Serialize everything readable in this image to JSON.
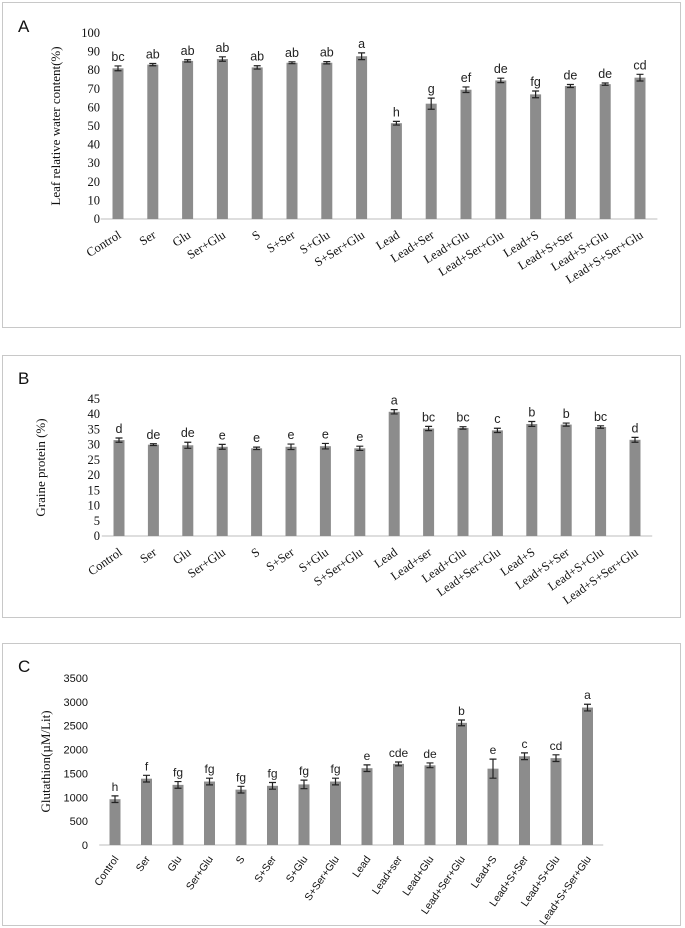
{
  "chart_data": [
    {
      "panel": "A",
      "type": "bar",
      "ylabel": "Leaf relative water content(%)",
      "ylim": [
        0,
        100
      ],
      "yticks": [
        0,
        10,
        20,
        30,
        40,
        50,
        60,
        70,
        80,
        90,
        100
      ],
      "categories": [
        "Control",
        "Ser",
        "Glu",
        "Ser+Glu",
        "S",
        "S+Ser",
        "S+Glu",
        "S+Ser+Glu",
        "Lead",
        "Lead+Ser",
        "Lead+Glu",
        "Lead+Ser+Glu",
        "Lead+S",
        "Lead+S+Ser",
        "Lead+S+Glu",
        "Lead+S+Ser+Glu"
      ],
      "values": [
        81,
        83,
        85,
        86,
        81.5,
        84,
        84,
        87.5,
        51.5,
        62,
        69.5,
        74.5,
        67,
        71.5,
        72.5,
        76
      ],
      "errors": [
        1.3,
        0.6,
        0.6,
        1.2,
        0.9,
        0.5,
        0.6,
        1.8,
        1.0,
        3.0,
        1.5,
        1.2,
        1.8,
        0.8,
        0.6,
        1.8
      ],
      "letters": [
        "bc",
        "ab",
        "ab",
        "ab",
        "ab",
        "ab",
        "ab",
        "a",
        "h",
        "g",
        "ef",
        "de",
        "fg",
        "de",
        "de",
        "cd"
      ]
    },
    {
      "panel": "B",
      "type": "bar",
      "ylabel": "Graine  protein (%)",
      "ylim": [
        0,
        45
      ],
      "yticks": [
        0,
        5,
        10,
        15,
        20,
        25,
        30,
        35,
        40,
        45
      ],
      "categories": [
        "Control",
        "Ser",
        "Glu",
        "Ser+Glu",
        "S",
        "S+Ser",
        "S+Glu",
        "S+Ser+Glu",
        "Lead",
        "Lead+ser",
        "Lead+Glu",
        "Lead+Ser+Glu",
        "Lead+S",
        "Lead+S+Ser",
        "Lead+S+Glu",
        "Lead+S+Ser+Glu"
      ],
      "values": [
        31.5,
        30,
        29.8,
        29.3,
        28.8,
        29.3,
        29.5,
        28.8,
        40.8,
        35.3,
        35.5,
        34.7,
        36.8,
        36.6,
        35.8,
        31.6
      ],
      "errors": [
        0.7,
        0.3,
        1.0,
        0.8,
        0.4,
        0.9,
        0.9,
        0.7,
        0.7,
        0.7,
        0.4,
        0.7,
        0.8,
        0.5,
        0.4,
        0.8
      ],
      "letters": [
        "d",
        "de",
        "de",
        "e",
        "e",
        "e",
        "e",
        "e",
        "a",
        "bc",
        "bc",
        "c",
        "b",
        "b",
        "bc",
        "d"
      ]
    },
    {
      "panel": "C",
      "type": "bar",
      "ylabel": "Glutathion(µM/Lit)",
      "ylim": [
        0,
        3500
      ],
      "yticks": [
        0,
        500,
        1000,
        1500,
        2000,
        2500,
        3000,
        3500
      ],
      "categories": [
        "Control",
        "Ser",
        "Glu",
        "Ser+Glu",
        "S",
        "S+Ser",
        "S+Glu",
        "S+Ser+Glu",
        "Lead",
        "Lead+ser",
        "Lead+Glu",
        "Lead+Ser+Glu",
        "Lead+S",
        "Lead+S+Ser",
        "Lead+S+Glu",
        "Lead+S+Ser+Glu"
      ],
      "values": [
        960,
        1390,
        1260,
        1330,
        1160,
        1240,
        1270,
        1330,
        1610,
        1700,
        1670,
        2560,
        1600,
        1860,
        1820,
        2880
      ],
      "errors": [
        70,
        70,
        70,
        70,
        70,
        70,
        90,
        70,
        70,
        40,
        50,
        60,
        200,
        70,
        70,
        70
      ],
      "letters": [
        "h",
        "f",
        "fg",
        "fg",
        "fg",
        "fg",
        "fg",
        "fg",
        "e",
        "cde",
        "de",
        "b",
        "e",
        "c",
        "cd",
        "a"
      ]
    }
  ],
  "panels": {
    "a": {
      "label": "A"
    },
    "b": {
      "label": "B"
    },
    "c": {
      "label": "C"
    }
  }
}
